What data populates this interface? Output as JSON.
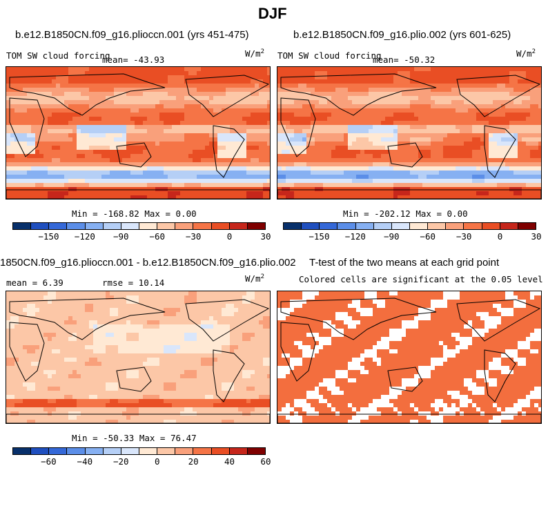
{
  "figure": {
    "title": "DJF"
  },
  "panels": [
    {
      "title": "b.e12.B1850CN.f09_g16.plioccn.001 (yrs 451-475)",
      "left_label": "TOM SW cloud forcing",
      "center_label": "mean= -43.93",
      "units": "W/m",
      "units_sup": "2",
      "minmax": "Min = -168.82 Max =   0.00"
    },
    {
      "title": "b.e12.B1850CN.f09_g16.plio.002 (yrs 601-625)",
      "left_label": "TOM SW cloud forcing",
      "center_label": "mean= -50.32",
      "units": "W/m",
      "units_sup": "2",
      "minmax": "Min = -202.12 Max =   0.00"
    },
    {
      "title": "1850CN.f09_g16.plioccn.001 - b.e12.B1850CN.f09_g16.plio.002",
      "left_label": "mean =   6.39",
      "center_label": "rmse =  10.14",
      "units": "W/m",
      "units_sup": "2",
      "minmax": "Min = -50.33 Max =  76.47"
    },
    {
      "title": "T-test of the two means at each grid point",
      "subtitle": "Colored cells are significant at the 0.05 level"
    }
  ],
  "colors": {
    "palette": [
      "#08306b",
      "#1f4fbf",
      "#3468d8",
      "#5b8ee8",
      "#86b0f2",
      "#b5cff6",
      "#d9e6fb",
      "#ffe9d4",
      "#fcc7a7",
      "#f9a07b",
      "#f57446",
      "#e94e24",
      "#c6261b",
      "#7f0000"
    ],
    "significant": "#f36e3e"
  },
  "chart_data": [
    {
      "type": "heatmap",
      "title": "b.e12.B1850CN.f09_g16.plioccn.001 (yrs 451-475)",
      "variable": "TOM SW cloud forcing",
      "units": "W/m2",
      "mean": -43.93,
      "min": -168.82,
      "max": 0.0,
      "colorbar_ticks": [
        -150,
        -120,
        -90,
        -60,
        -30,
        0,
        30
      ],
      "contour_levels": [
        -165,
        -150,
        -135,
        -120,
        -105,
        -90,
        -75,
        -60,
        -45,
        -30,
        -15,
        0,
        15,
        30,
        45
      ]
    },
    {
      "type": "heatmap",
      "title": "b.e12.B1850CN.f09_g16.plio.002 (yrs 601-625)",
      "variable": "TOM SW cloud forcing",
      "units": "W/m2",
      "mean": -50.32,
      "min": -202.12,
      "max": 0.0,
      "colorbar_ticks": [
        -150,
        -120,
        -90,
        -60,
        -30,
        0,
        30
      ],
      "contour_levels": [
        -165,
        -150,
        -135,
        -120,
        -105,
        -90,
        -75,
        -60,
        -45,
        -30,
        -15,
        0,
        15,
        30,
        45
      ]
    },
    {
      "type": "heatmap",
      "title": "1850CN.f09_g16.plioccn.001 - b.e12.B1850CN.f09_g16.plio.002",
      "units": "W/m2",
      "mean": 6.39,
      "rmse": 10.14,
      "min": -50.33,
      "max": 76.47,
      "colorbar_ticks": [
        -60,
        -40,
        -20,
        0,
        20,
        40,
        60
      ],
      "contour_levels": [
        -70,
        -60,
        -50,
        -40,
        -30,
        -20,
        -10,
        0,
        10,
        20,
        30,
        40,
        50,
        60,
        70
      ]
    },
    {
      "type": "heatmap",
      "title": "T-test of the two means at each grid point",
      "subtitle": "Colored cells are significant at the 0.05 level"
    }
  ]
}
